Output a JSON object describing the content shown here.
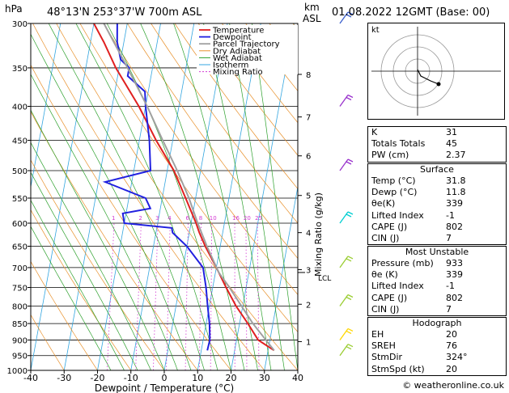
{
  "header": {
    "hpa_label": "hPa",
    "location": "48°13'N  253°37'W  700m  ASL",
    "km_label": "km",
    "asl_label": "ASL",
    "datetime": "01.08.2022  12GMT  (Base: 00)"
  },
  "chart_data": {
    "type": "line",
    "xlabel": "Dewpoint / Temperature (°C)",
    "ylabel": "Mixing Ratio (g/kg)",
    "x_ticks": [
      -40,
      -30,
      -20,
      -10,
      0,
      10,
      20,
      30,
      40
    ],
    "xlim": [
      -40,
      40
    ],
    "pressure_levels": [
      300,
      350,
      400,
      450,
      500,
      550,
      600,
      650,
      700,
      750,
      800,
      850,
      900,
      950,
      1000
    ],
    "ylim": [
      1000,
      300
    ],
    "km_ticks": [
      {
        "km": "8",
        "p": 358
      },
      {
        "km": "7",
        "p": 415
      },
      {
        "km": "6",
        "p": 475
      },
      {
        "km": "5",
        "p": 545
      },
      {
        "km": "4",
        "p": 620
      },
      {
        "km": "3",
        "p": 705
      },
      {
        "km": "2",
        "p": 795
      },
      {
        "km": "1",
        "p": 905
      }
    ],
    "lcl_label": "LCL",
    "lcl_pressure": 712,
    "mixing_ratio_labels": [
      "1",
      "2",
      "3",
      "4",
      "6",
      "8",
      "10",
      "16",
      "20",
      "25"
    ],
    "legend": [
      "Temperature",
      "Dewpoint",
      "Parcel Trajectory",
      "Dry Adiabat",
      "Wet Adiabat",
      "Isotherm",
      "Mixing Ratio"
    ],
    "series": [
      {
        "name": "Temperature",
        "color": "#e02020",
        "points": [
          [
            933,
            31.8
          ],
          [
            900,
            26.5
          ],
          [
            850,
            22.5
          ],
          [
            800,
            18
          ],
          [
            750,
            14
          ],
          [
            700,
            10
          ],
          [
            650,
            5.5
          ],
          [
            620,
            3
          ],
          [
            600,
            1.5
          ],
          [
            550,
            -3
          ],
          [
            500,
            -8
          ],
          [
            450,
            -15
          ],
          [
            400,
            -22
          ],
          [
            350,
            -31
          ],
          [
            320,
            -36
          ],
          [
            300,
            -40
          ]
        ]
      },
      {
        "name": "Dewpoint",
        "color": "#2020e0",
        "points": [
          [
            933,
            11.8
          ],
          [
            900,
            12
          ],
          [
            850,
            11
          ],
          [
            800,
            9.5
          ],
          [
            750,
            8
          ],
          [
            700,
            6
          ],
          [
            650,
            0
          ],
          [
            620,
            -5
          ],
          [
            610,
            -5.5
          ],
          [
            600,
            -20
          ],
          [
            580,
            -21
          ],
          [
            570,
            -13
          ],
          [
            550,
            -15
          ],
          [
            520,
            -28
          ],
          [
            500,
            -15
          ],
          [
            450,
            -17
          ],
          [
            400,
            -20
          ],
          [
            380,
            -21
          ],
          [
            360,
            -27
          ],
          [
            350,
            -27
          ],
          [
            340,
            -30
          ],
          [
            320,
            -32
          ],
          [
            300,
            -33
          ]
        ]
      },
      {
        "name": "Parcel Trajectory",
        "color": "#a0a0a0",
        "points": [
          [
            933,
            31.8
          ],
          [
            850,
            24
          ],
          [
            750,
            15
          ],
          [
            712,
            11
          ],
          [
            650,
            6
          ],
          [
            600,
            2
          ],
          [
            550,
            -2
          ],
          [
            500,
            -7
          ],
          [
            450,
            -13
          ],
          [
            400,
            -19.5
          ],
          [
            350,
            -27.5
          ],
          [
            300,
            -37
          ]
        ]
      }
    ],
    "wind_barbs_color": "#9acd32"
  },
  "hodograph": {
    "label": "kt"
  },
  "indices": {
    "k_label": "K",
    "k_value": "31",
    "tt_label": "Totals Totals",
    "tt_value": "45",
    "pw_label": "PW (cm)",
    "pw_value": "2.37"
  },
  "surface": {
    "title": "Surface",
    "temp_label": "Temp (°C)",
    "temp_value": "31.8",
    "dewp_label": "Dewp (°C)",
    "dewp_value": "11.8",
    "thetae_label": "θe(K)",
    "thetae_value": "339",
    "li_label": "Lifted Index",
    "li_value": "-1",
    "cape_label": "CAPE (J)",
    "cape_value": "802",
    "cin_label": "CIN (J)",
    "cin_value": "7"
  },
  "most_unstable": {
    "title": "Most Unstable",
    "pres_label": "Pressure (mb)",
    "pres_value": "933",
    "thetae_label": "θe (K)",
    "thetae_value": "339",
    "li_label": "Lifted Index",
    "li_value": "-1",
    "cape_label": "CAPE (J)",
    "cape_value": "802",
    "cin_label": "CIN (J)",
    "cin_value": "7"
  },
  "hodo_table": {
    "title": "Hodograph",
    "eh_label": "EH",
    "eh_value": "20",
    "sreh_label": "SREH",
    "sreh_value": "76",
    "stmdir_label": "StmDir",
    "stmdir_value": "324°",
    "stmspd_label": "StmSpd (kt)",
    "stmspd_value": "20"
  },
  "credit": "© weatheronline.co.uk"
}
